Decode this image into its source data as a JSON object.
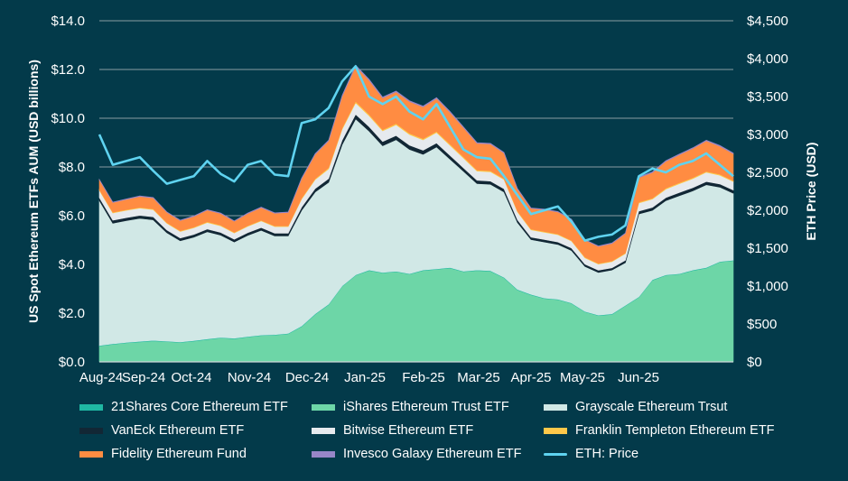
{
  "chart_data": {
    "type": "area",
    "subtype": "stacked-area-with-line",
    "title": "",
    "xlabel": "",
    "ylabel": "US Spot Ethereum ETFs AUM (USD billions)",
    "y2label": "ETH Price (USD)",
    "ylim": [
      0,
      14
    ],
    "y2lim": [
      0,
      4500
    ],
    "yticks": [
      "$0.0",
      "$2.0",
      "$4.0",
      "$6.0",
      "$8.0",
      "$10.0",
      "$12.0",
      "$14.0"
    ],
    "y2ticks": [
      "$0",
      "$500",
      "$1,000",
      "$1,500",
      "$2,000",
      "$2,500",
      "$3,000",
      "$3,500",
      "$4,000",
      "$4,500"
    ],
    "xticks": [
      "Aug-24",
      "Sep-24",
      "Oct-24",
      "Nov-24",
      "Dec-24",
      "Jan-25",
      "Feb-25",
      "Mar-25",
      "Apr-25",
      "May-25",
      "Jun-25"
    ],
    "grid": true,
    "legend_position": "bottom",
    "x": [
      "2024-07-29",
      "2024-08-05",
      "2024-08-12",
      "2024-08-19",
      "2024-08-26",
      "2024-09-02",
      "2024-09-09",
      "2024-09-16",
      "2024-09-23",
      "2024-09-30",
      "2024-10-07",
      "2024-10-14",
      "2024-10-21",
      "2024-10-28",
      "2024-11-04",
      "2024-11-11",
      "2024-11-18",
      "2024-11-25",
      "2024-12-02",
      "2024-12-09",
      "2024-12-16",
      "2024-12-23",
      "2024-12-30",
      "2025-01-06",
      "2025-01-13",
      "2025-01-20",
      "2025-01-27",
      "2025-02-03",
      "2025-02-10",
      "2025-02-17",
      "2025-02-24",
      "2025-03-03",
      "2025-03-10",
      "2025-03-17",
      "2025-03-24",
      "2025-03-31",
      "2025-04-07",
      "2025-04-14",
      "2025-04-21",
      "2025-04-28",
      "2025-05-05",
      "2025-05-12",
      "2025-05-19",
      "2025-05-26",
      "2025-06-02",
      "2025-06-09",
      "2025-06-16",
      "2025-06-23"
    ],
    "series": [
      {
        "name": "iShares Ethereum Trust ETF",
        "color": "#6dd6a7",
        "values": [
          0.65,
          0.72,
          0.78,
          0.82,
          0.86,
          0.83,
          0.8,
          0.85,
          0.92,
          0.98,
          0.95,
          1.02,
          1.08,
          1.1,
          1.15,
          1.45,
          1.95,
          2.35,
          3.1,
          3.55,
          3.75,
          3.65,
          3.7,
          3.6,
          3.75,
          3.8,
          3.85,
          3.7,
          3.75,
          3.72,
          3.45,
          2.95,
          2.75,
          2.6,
          2.55,
          2.4,
          2.05,
          1.9,
          1.95,
          2.3,
          2.65,
          3.35,
          3.55,
          3.6,
          3.75,
          3.85,
          4.1,
          4.15
        ]
      },
      {
        "name": "21Shares Core Ethereum ETF",
        "color": "#1fb8a3",
        "values": [
          0.02,
          0.02,
          0.02,
          0.02,
          0.02,
          0.02,
          0.02,
          0.02,
          0.02,
          0.02,
          0.02,
          0.02,
          0.02,
          0.02,
          0.02,
          0.02,
          0.02,
          0.02,
          0.02,
          0.02,
          0.02,
          0.02,
          0.02,
          0.02,
          0.02,
          0.02,
          0.02,
          0.02,
          0.02,
          0.02,
          0.02,
          0.02,
          0.02,
          0.02,
          0.02,
          0.02,
          0.02,
          0.02,
          0.02,
          0.02,
          0.02,
          0.02,
          0.02,
          0.02,
          0.02,
          0.02,
          0.02,
          0.02
        ]
      },
      {
        "name": "Grayscale Ethereum Trsut",
        "color": "#d1e8e6",
        "values": [
          5.95,
          4.95,
          5.0,
          5.05,
          4.95,
          4.45,
          4.15,
          4.25,
          4.4,
          4.2,
          3.95,
          4.15,
          4.3,
          4.05,
          4.0,
          4.75,
          5.0,
          5.0,
          5.8,
          6.4,
          5.7,
          5.2,
          5.4,
          5.1,
          4.75,
          5.0,
          4.45,
          4.1,
          3.55,
          3.55,
          3.5,
          2.75,
          2.25,
          2.3,
          2.25,
          2.15,
          1.85,
          1.75,
          1.8,
          1.75,
          3.4,
          2.85,
          3.05,
          3.2,
          3.25,
          3.4,
          3.05,
          2.75
        ]
      },
      {
        "name": "VanEck Ethereum ETF",
        "color": "#122735",
        "values": [
          0.12,
          0.12,
          0.12,
          0.12,
          0.12,
          0.11,
          0.11,
          0.11,
          0.11,
          0.11,
          0.11,
          0.11,
          0.11,
          0.11,
          0.11,
          0.13,
          0.14,
          0.15,
          0.18,
          0.19,
          0.18,
          0.17,
          0.17,
          0.17,
          0.16,
          0.16,
          0.15,
          0.14,
          0.13,
          0.13,
          0.13,
          0.11,
          0.1,
          0.1,
          0.1,
          0.1,
          0.09,
          0.09,
          0.09,
          0.1,
          0.12,
          0.12,
          0.12,
          0.13,
          0.13,
          0.13,
          0.13,
          0.13
        ]
      },
      {
        "name": "Bitwise Ethereum ETF",
        "color": "#e6eaee",
        "values": [
          0.3,
          0.3,
          0.3,
          0.3,
          0.3,
          0.28,
          0.27,
          0.27,
          0.27,
          0.27,
          0.26,
          0.26,
          0.27,
          0.27,
          0.27,
          0.33,
          0.37,
          0.4,
          0.45,
          0.47,
          0.45,
          0.44,
          0.44,
          0.44,
          0.43,
          0.43,
          0.42,
          0.4,
          0.38,
          0.38,
          0.38,
          0.32,
          0.3,
          0.3,
          0.3,
          0.29,
          0.26,
          0.25,
          0.25,
          0.27,
          0.33,
          0.34,
          0.35,
          0.36,
          0.37,
          0.38,
          0.36,
          0.35
        ]
      },
      {
        "name": "Franklin Templeton Ethereum ETF",
        "color": "#ffc84a",
        "values": [
          0.03,
          0.03,
          0.03,
          0.03,
          0.03,
          0.03,
          0.03,
          0.03,
          0.03,
          0.03,
          0.03,
          0.03,
          0.03,
          0.03,
          0.03,
          0.04,
          0.04,
          0.05,
          0.05,
          0.06,
          0.06,
          0.05,
          0.05,
          0.05,
          0.05,
          0.05,
          0.05,
          0.05,
          0.04,
          0.04,
          0.04,
          0.04,
          0.03,
          0.03,
          0.03,
          0.03,
          0.03,
          0.03,
          0.03,
          0.03,
          0.04,
          0.04,
          0.04,
          0.04,
          0.04,
          0.04,
          0.04,
          0.04
        ]
      },
      {
        "name": "Fidelity Ethereum Fund",
        "color": "#ff8c42",
        "values": [
          0.4,
          0.4,
          0.42,
          0.45,
          0.45,
          0.42,
          0.42,
          0.44,
          0.48,
          0.48,
          0.45,
          0.5,
          0.52,
          0.52,
          0.55,
          0.8,
          1.0,
          1.1,
          1.3,
          1.45,
          1.4,
          1.3,
          1.3,
          1.3,
          1.3,
          1.35,
          1.3,
          1.2,
          1.1,
          1.1,
          1.05,
          0.9,
          0.85,
          0.9,
          0.9,
          0.85,
          0.7,
          0.7,
          0.72,
          0.8,
          1.0,
          1.05,
          1.1,
          1.15,
          1.2,
          1.25,
          1.15,
          1.1
        ]
      },
      {
        "name": "Invesco Galaxy Ethereum ETF",
        "color": "#9786c8",
        "values": [
          0.02,
          0.02,
          0.02,
          0.02,
          0.02,
          0.02,
          0.02,
          0.02,
          0.02,
          0.02,
          0.02,
          0.02,
          0.02,
          0.02,
          0.02,
          0.03,
          0.03,
          0.03,
          0.04,
          0.04,
          0.04,
          0.04,
          0.04,
          0.04,
          0.04,
          0.04,
          0.04,
          0.03,
          0.03,
          0.03,
          0.03,
          0.03,
          0.02,
          0.02,
          0.02,
          0.02,
          0.02,
          0.02,
          0.02,
          0.02,
          0.03,
          0.03,
          0.03,
          0.03,
          0.03,
          0.03,
          0.03,
          0.03
        ]
      }
    ],
    "line_series": {
      "name": "ETH: Price",
      "axis": "right",
      "color": "#5fd3f0",
      "values": [
        3000,
        2600,
        2650,
        2700,
        2520,
        2350,
        2400,
        2450,
        2650,
        2480,
        2380,
        2600,
        2650,
        2470,
        2450,
        3150,
        3200,
        3350,
        3700,
        3900,
        3500,
        3400,
        3500,
        3300,
        3200,
        3400,
        3100,
        2800,
        2700,
        2680,
        2450,
        2200,
        1950,
        2000,
        2050,
        1850,
        1600,
        1650,
        1680,
        1800,
        2450,
        2550,
        2500,
        2600,
        2650,
        2750,
        2600,
        2450
      ]
    }
  },
  "legend": {
    "items": [
      {
        "label": "21Shares Core Ethereum ETF",
        "color": "#1fb8a3",
        "kind": "box"
      },
      {
        "label": "iShares Ethereum Trust ETF",
        "color": "#6dd6a7",
        "kind": "box"
      },
      {
        "label": "Grayscale Ethereum Trsut",
        "color": "#d1e8e6",
        "kind": "box"
      },
      {
        "label": "VanEck Ethereum ETF",
        "color": "#122735",
        "kind": "box"
      },
      {
        "label": "Bitwise Ethereum ETF",
        "color": "#e6eaee",
        "kind": "box"
      },
      {
        "label": "Franklin Templeton Ethereum ETF",
        "color": "#ffc84a",
        "kind": "box"
      },
      {
        "label": "Fidelity Ethereum Fund",
        "color": "#ff8c42",
        "kind": "box"
      },
      {
        "label": "Invesco Galaxy Ethereum ETF",
        "color": "#9786c8",
        "kind": "box"
      },
      {
        "label": "ETH: Price",
        "color": "#5fd3f0",
        "kind": "line"
      }
    ]
  },
  "colors": {
    "background": "#033a4a",
    "grid": "#8a9ca2",
    "text": "#ffffff"
  }
}
